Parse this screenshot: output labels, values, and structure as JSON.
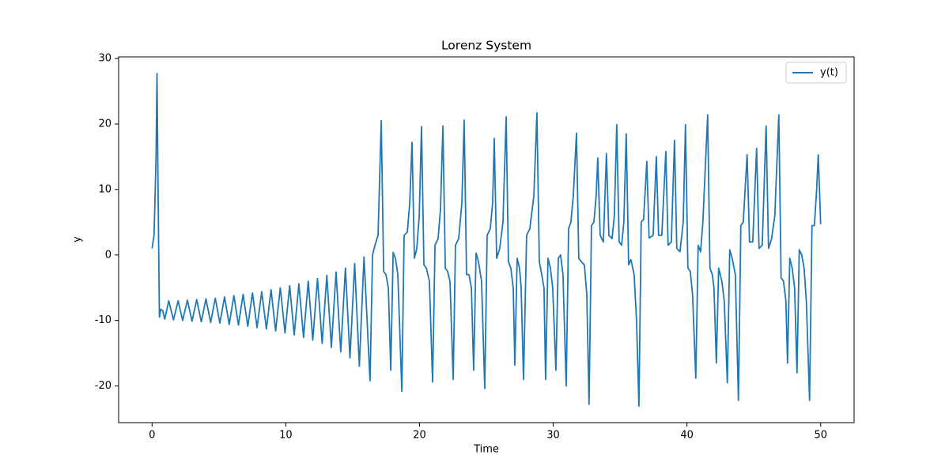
{
  "chart_data": {
    "type": "line",
    "title": "Lorenz System",
    "x_label": "Time",
    "y_label": "y",
    "legend": "upper right",
    "grid": false,
    "xlim": [
      -2.5,
      52.5
    ],
    "ylim": [
      -25.6,
      30.25
    ],
    "xticks": [
      0,
      10,
      20,
      30,
      40,
      50
    ],
    "yticks": [
      -20,
      -10,
      0,
      10,
      20,
      30
    ],
    "x": [
      0,
      0.15,
      0.3,
      0.37,
      0.45,
      0.55,
      0.65,
      0.8,
      0.95,
      1.25,
      1.6,
      1.95,
      2.29,
      2.64,
      2.99,
      3.34,
      3.68,
      4.03,
      4.38,
      4.73,
      5.07,
      5.42,
      5.77,
      6.12,
      6.46,
      6.81,
      7.16,
      7.51,
      7.85,
      8.2,
      8.55,
      8.9,
      9.24,
      9.59,
      9.94,
      10.29,
      10.63,
      10.98,
      11.33,
      11.68,
      12.02,
      12.37,
      12.72,
      13.07,
      13.41,
      13.76,
      14.11,
      14.46,
      14.8,
      15.15,
      15.5,
      15.85,
      16.3,
      16.49,
      16.67,
      16.9,
      17.14,
      17.32,
      17.49,
      17.67,
      17.85,
      18.03,
      18.2,
      18.38,
      18.68,
      18.85,
      19.09,
      19.27,
      19.44,
      19.62,
      19.8,
      19.98,
      20.15,
      20.33,
      20.51,
      20.74,
      20.98,
      21.16,
      21.39,
      21.57,
      21.75,
      21.93,
      22.1,
      22.28,
      22.52,
      22.69,
      22.93,
      23.17,
      23.34,
      23.52,
      23.7,
      23.88,
      24.05,
      24.23,
      24.41,
      24.64,
      24.88,
      25.06,
      25.29,
      25.47,
      25.59,
      25.77,
      26.0,
      26.24,
      26.48,
      26.65,
      26.83,
      27.01,
      27.13,
      27.3,
      27.48,
      27.6,
      27.78,
      28.01,
      28.25,
      28.55,
      28.78,
      28.96,
      29.14,
      29.31,
      29.43,
      29.61,
      29.79,
      29.96,
      30.2,
      30.38,
      30.55,
      30.73,
      30.97,
      31.15,
      31.32,
      31.5,
      31.74,
      31.91,
      32.09,
      32.33,
      32.51,
      32.68,
      32.86,
      33.04,
      33.21,
      33.33,
      33.51,
      33.75,
      33.98,
      34.16,
      34.4,
      34.57,
      34.75,
      34.93,
      35.11,
      35.28,
      35.46,
      35.64,
      35.81,
      36.05,
      36.23,
      36.41,
      36.58,
      36.76,
      37.0,
      37.17,
      37.47,
      37.71,
      37.88,
      38.12,
      38.42,
      38.59,
      38.83,
      39.07,
      39.24,
      39.48,
      39.72,
      39.89,
      40.07,
      40.25,
      40.42,
      40.66,
      40.84,
      41.02,
      41.19,
      41.55,
      41.72,
      41.9,
      42.02,
      42.2,
      42.37,
      42.61,
      42.79,
      43.02,
      43.2,
      43.38,
      43.62,
      43.85,
      44.03,
      44.21,
      44.5,
      44.68,
      44.92,
      45.21,
      45.39,
      45.63,
      45.92,
      46.1,
      46.33,
      46.57,
      46.87,
      47.04,
      47.22,
      47.4,
      47.52,
      47.69,
      47.87,
      48.05,
      48.23,
      48.4,
      48.58,
      48.76,
      48.93,
      49.17,
      49.35,
      49.53,
      49.7,
      49.82,
      50.0
    ],
    "series": [
      {
        "name": "y(t)",
        "color": "#1f77b4",
        "values": [
          1,
          3,
          15,
          27.7,
          10,
          -9.5,
          -8.3,
          -8.5,
          -9.8,
          -7.0,
          -9.9,
          -7.0,
          -10.0,
          -6.9,
          -10.1,
          -6.8,
          -10.2,
          -6.7,
          -10.3,
          -6.6,
          -10.4,
          -6.4,
          -10.6,
          -6.2,
          -10.7,
          -6.0,
          -10.9,
          -5.8,
          -11.1,
          -5.6,
          -11.3,
          -5.3,
          -11.6,
          -5.0,
          -11.9,
          -4.7,
          -12.2,
          -4.4,
          -12.6,
          -4.0,
          -13.0,
          -3.6,
          -13.5,
          -3.1,
          -14.1,
          -2.6,
          -14.8,
          -2.0,
          -15.7,
          -1.3,
          -17.0,
          -0.3,
          -19.2,
          0,
          1.5,
          3,
          20.5,
          -2.5,
          -3,
          -5,
          -17.6,
          0.4,
          -0.5,
          -3,
          -20.8,
          3,
          3.5,
          8,
          17.2,
          -0.5,
          1,
          6,
          19.6,
          -1.5,
          -2,
          -4,
          -19.4,
          1.5,
          2.5,
          7,
          19.7,
          -2,
          -2.5,
          -4,
          -19,
          1.5,
          2.5,
          8,
          20.6,
          -3,
          -3,
          -5,
          -17.6,
          0.3,
          -1,
          -4,
          -20.4,
          3,
          4,
          8,
          17.8,
          -0.5,
          1,
          5,
          21.1,
          -1,
          -2,
          -5,
          -16.8,
          -0.5,
          -2,
          -5,
          -19,
          3,
          4,
          9,
          21.7,
          -1,
          -3,
          -5,
          -19,
          -0.5,
          -2,
          -5,
          -17.6,
          -0.5,
          0,
          -3,
          -20,
          4,
          5,
          9,
          18.6,
          -0.5,
          -1,
          -1.5,
          -6,
          -22.8,
          4.5,
          5,
          9,
          14.8,
          3,
          2,
          15.5,
          3,
          2.5,
          6,
          19.9,
          2,
          1.5,
          5,
          18.5,
          -1.5,
          -0.7,
          -3,
          -10,
          -23.1,
          5,
          5.5,
          14.3,
          2.6,
          3,
          15.0,
          3,
          3,
          15.8,
          1.5,
          2,
          17.5,
          1,
          0.5,
          5,
          19.9,
          -2,
          -2.5,
          -6,
          -18.8,
          1.5,
          0.5,
          5,
          21.4,
          -2,
          -3,
          -5,
          -16.5,
          -2,
          -4,
          -7,
          -19.5,
          0.8,
          -0.5,
          -3,
          -22.2,
          4.5,
          5,
          15.3,
          2,
          2,
          16.3,
          1,
          1.5,
          19.7,
          1,
          2.5,
          6,
          21.4,
          -3.5,
          -4,
          -7,
          -16.5,
          -0.5,
          -2,
          -5,
          -18,
          0.8,
          0,
          -2,
          -7,
          -22.2,
          4.5,
          4.5,
          10,
          15.3,
          4.7
        ]
      }
    ]
  }
}
